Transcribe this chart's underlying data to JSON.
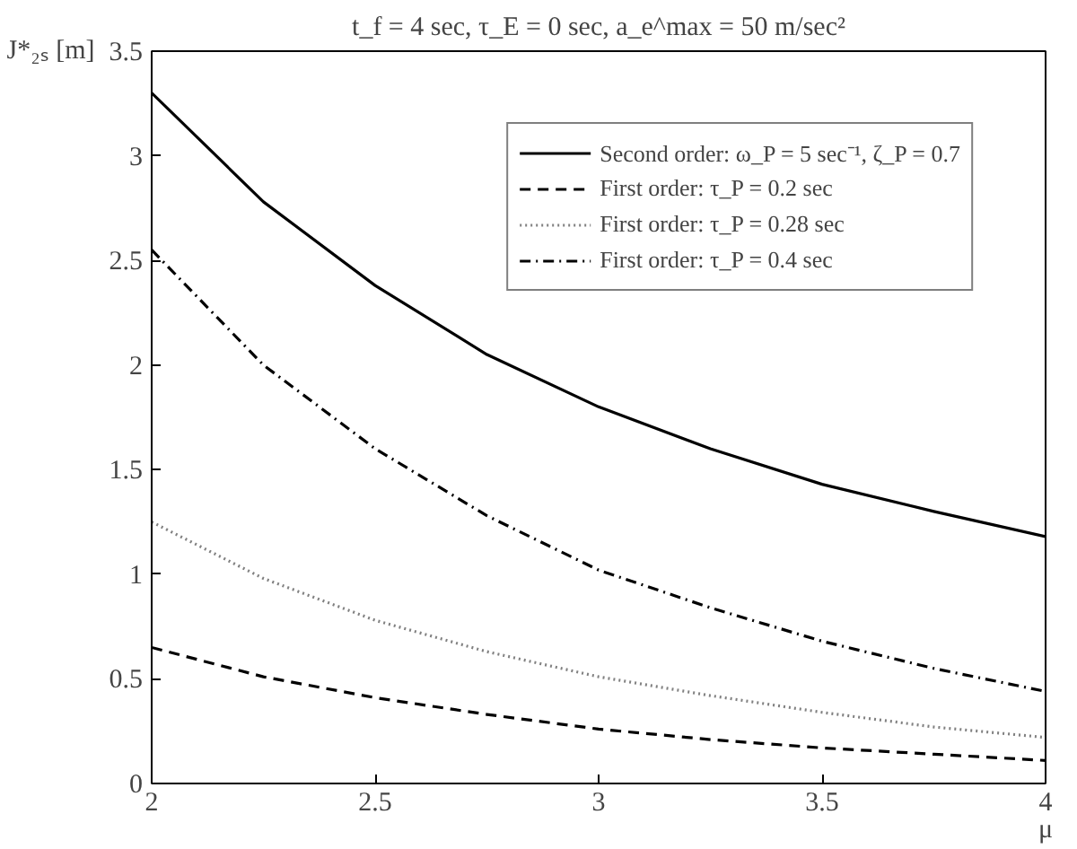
{
  "chart_data": {
    "type": "line",
    "title": "t_f = 4 sec, τ_E = 0 sec, a_e^max = 50 m/sec²",
    "xlabel": "μ",
    "ylabel": "J*₂ₛ [m]",
    "x": [
      2,
      2.25,
      2.5,
      2.75,
      3,
      3.25,
      3.5,
      3.75,
      4
    ],
    "series": [
      {
        "name": "Second order: ω_P = 5 sec⁻¹, ζ_P = 0.7",
        "color": "#000000",
        "line_style": "solid",
        "values": [
          3.3,
          2.78,
          2.38,
          2.05,
          1.8,
          1.6,
          1.43,
          1.3,
          1.18
        ]
      },
      {
        "name": "First order: τ_P = 0.2 sec",
        "color": "#000000",
        "line_style": "dashed",
        "values": [
          0.65,
          0.51,
          0.41,
          0.33,
          0.26,
          0.21,
          0.17,
          0.14,
          0.11
        ]
      },
      {
        "name": "First order: τ_P = 0.28 sec",
        "color": "#808080",
        "line_style": "dotted",
        "values": [
          1.25,
          0.98,
          0.78,
          0.63,
          0.51,
          0.42,
          0.34,
          0.27,
          0.22
        ]
      },
      {
        "name": "First order: τ_P = 0.4 sec",
        "color": "#000000",
        "line_style": "dashdot",
        "values": [
          2.55,
          2.0,
          1.6,
          1.28,
          1.02,
          0.84,
          0.68,
          0.55,
          0.44
        ]
      }
    ],
    "xlim": [
      2,
      4
    ],
    "ylim": [
      0,
      3.5
    ],
    "xticks": [
      2,
      2.5,
      3,
      3.5,
      4
    ],
    "yticks": [
      0,
      0.5,
      1,
      1.5,
      2,
      2.5,
      3,
      3.5
    ],
    "grid": false,
    "legend": "top right",
    "marker": "none"
  }
}
